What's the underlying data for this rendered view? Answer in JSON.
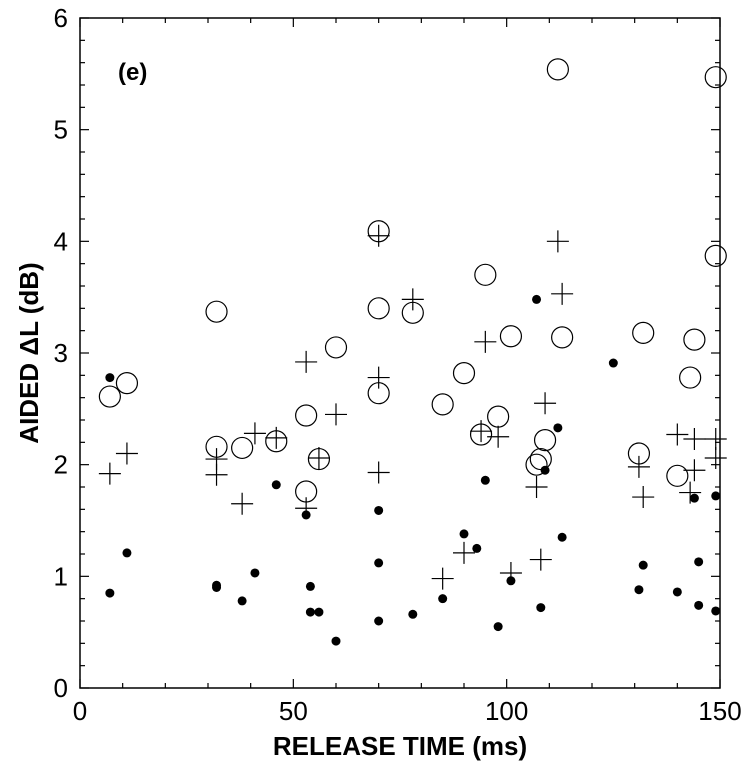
{
  "chart_data": {
    "type": "scatter",
    "panel_label": "(e)",
    "xlabel": "RELEASE TIME (ms)",
    "ylabel": "AIDED ΔL (dB)",
    "xlim": [
      0,
      150
    ],
    "ylim": [
      0,
      6
    ],
    "xticks": [
      0,
      50,
      100,
      150
    ],
    "yticks": [
      0,
      1,
      2,
      3,
      4,
      5,
      6
    ],
    "grid": false,
    "series": [
      {
        "marker": "open-circle",
        "points": [
          [
            7,
            2.61
          ],
          [
            11,
            2.73
          ],
          [
            32,
            3.37
          ],
          [
            32,
            2.16
          ],
          [
            38,
            2.15
          ],
          [
            46,
            2.21
          ],
          [
            53,
            2.44
          ],
          [
            53,
            1.76
          ],
          [
            56,
            2.05
          ],
          [
            60,
            3.05
          ],
          [
            70,
            4.09
          ],
          [
            70,
            3.4
          ],
          [
            70,
            2.64
          ],
          [
            78,
            3.36
          ],
          [
            85,
            2.54
          ],
          [
            90,
            2.82
          ],
          [
            94,
            2.27
          ],
          [
            95,
            3.7
          ],
          [
            98,
            2.43
          ],
          [
            101,
            3.15
          ],
          [
            107,
            2.0
          ],
          [
            108,
            2.05
          ],
          [
            109,
            2.22
          ],
          [
            112,
            5.54
          ],
          [
            113,
            3.14
          ],
          [
            131,
            2.1
          ],
          [
            132,
            3.18
          ],
          [
            140,
            1.9
          ],
          [
            143,
            2.78
          ],
          [
            144,
            3.12
          ],
          [
            149,
            5.47
          ],
          [
            149,
            3.87
          ]
        ]
      },
      {
        "marker": "plus",
        "points": [
          [
            7,
            1.92
          ],
          [
            11,
            2.1
          ],
          [
            32,
            2.05
          ],
          [
            32,
            1.91
          ],
          [
            38,
            1.65
          ],
          [
            41,
            2.28
          ],
          [
            46,
            2.24
          ],
          [
            53,
            2.92
          ],
          [
            53,
            1.61
          ],
          [
            56,
            2.06
          ],
          [
            60,
            2.45
          ],
          [
            70,
            4.05
          ],
          [
            70,
            2.78
          ],
          [
            70,
            1.93
          ],
          [
            78,
            3.48
          ],
          [
            85,
            0.98
          ],
          [
            90,
            1.21
          ],
          [
            94,
            2.3
          ],
          [
            95,
            3.1
          ],
          [
            98,
            2.25
          ],
          [
            101,
            1.03
          ],
          [
            107,
            1.8
          ],
          [
            108,
            1.15
          ],
          [
            109,
            2.55
          ],
          [
            112,
            4.0
          ],
          [
            113,
            3.53
          ],
          [
            131,
            1.98
          ],
          [
            132,
            1.71
          ],
          [
            140,
            2.27
          ],
          [
            143,
            1.75
          ],
          [
            144,
            1.95
          ],
          [
            144,
            2.23
          ],
          [
            149,
            2.23
          ],
          [
            149,
            2.06
          ]
        ]
      },
      {
        "marker": "filled-circle",
        "points": [
          [
            7,
            2.78
          ],
          [
            7,
            0.85
          ],
          [
            11,
            1.21
          ],
          [
            32,
            0.92
          ],
          [
            32,
            0.9
          ],
          [
            38,
            0.78
          ],
          [
            41,
            1.03
          ],
          [
            46,
            1.82
          ],
          [
            53,
            1.55
          ],
          [
            54,
            0.91
          ],
          [
            54,
            0.68
          ],
          [
            56,
            0.68
          ],
          [
            60,
            0.42
          ],
          [
            70,
            1.59
          ],
          [
            70,
            1.12
          ],
          [
            70,
            0.6
          ],
          [
            78,
            0.66
          ],
          [
            85,
            0.8
          ],
          [
            90,
            1.38
          ],
          [
            93,
            1.25
          ],
          [
            95,
            1.86
          ],
          [
            98,
            0.55
          ],
          [
            101,
            0.96
          ],
          [
            107,
            3.48
          ],
          [
            108,
            0.72
          ],
          [
            109,
            1.95
          ],
          [
            112,
            2.33
          ],
          [
            113,
            1.35
          ],
          [
            125,
            2.91
          ],
          [
            131,
            0.88
          ],
          [
            132,
            1.1
          ],
          [
            140,
            0.86
          ],
          [
            144,
            1.7
          ],
          [
            145,
            1.13
          ],
          [
            145,
            0.74
          ],
          [
            149,
            1.72
          ],
          [
            149,
            0.69
          ]
        ]
      }
    ]
  }
}
